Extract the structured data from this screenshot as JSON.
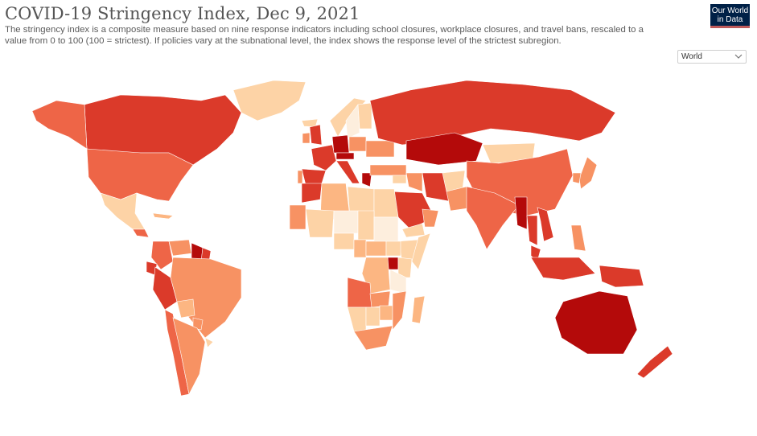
{
  "header": {
    "title": "COVID-19 Stringency Index, Dec 9, 2021",
    "subtitle": "The stringency index is a composite measure based on nine response indicators including school closures, workplace closures, and travel bans, rescaled to a value from 0 to 100 (100 = strictest). If policies vary at the subnational level, the index shows the response level of the strictest subregion."
  },
  "logo": {
    "line1": "Our World",
    "line2": "in Data"
  },
  "region_select": {
    "value": "World"
  },
  "icons": {
    "dropdown": "chevron-down-icon"
  },
  "colors": {
    "very_low": "#fdeedd",
    "low": "#fdd3a6",
    "low_mid": "#fcb682",
    "mid": "#f79263",
    "high": "#ee6547",
    "higher": "#db3a2a",
    "very_high": "#b40a0a",
    "no_data": "#e0e0e0"
  },
  "map_data": [
    {
      "name": "Canada",
      "level": "higher"
    },
    {
      "name": "Alaska (United States)",
      "level": "high"
    },
    {
      "name": "United States",
      "level": "high"
    },
    {
      "name": "Greenland",
      "level": "low"
    },
    {
      "name": "Mexico",
      "level": "low"
    },
    {
      "name": "Guatemala",
      "level": "high"
    },
    {
      "name": "Cuba",
      "level": "low_mid"
    },
    {
      "name": "Colombia",
      "level": "high"
    },
    {
      "name": "Venezuela",
      "level": "mid"
    },
    {
      "name": "Guyana",
      "level": "very_high"
    },
    {
      "name": "Suriname",
      "level": "higher"
    },
    {
      "name": "Ecuador",
      "level": "higher"
    },
    {
      "name": "Peru",
      "level": "higher"
    },
    {
      "name": "Brazil",
      "level": "mid"
    },
    {
      "name": "Bolivia",
      "level": "low_mid"
    },
    {
      "name": "Paraguay",
      "level": "mid"
    },
    {
      "name": "Chile",
      "level": "high"
    },
    {
      "name": "Argentina",
      "level": "mid"
    },
    {
      "name": "Uruguay",
      "level": "low"
    },
    {
      "name": "Iceland",
      "level": "low"
    },
    {
      "name": "Norway",
      "level": "low"
    },
    {
      "name": "Sweden",
      "level": "very_low"
    },
    {
      "name": "Finland",
      "level": "low"
    },
    {
      "name": "United Kingdom",
      "level": "higher"
    },
    {
      "name": "Ireland",
      "level": "mid"
    },
    {
      "name": "France",
      "level": "higher"
    },
    {
      "name": "Spain",
      "level": "higher"
    },
    {
      "name": "Portugal",
      "level": "mid"
    },
    {
      "name": "Germany",
      "level": "very_high"
    },
    {
      "name": "Poland",
      "level": "mid"
    },
    {
      "name": "Italy",
      "level": "higher"
    },
    {
      "name": "Austria",
      "level": "very_high"
    },
    {
      "name": "Greece",
      "level": "very_high"
    },
    {
      "name": "Ukraine",
      "level": "mid"
    },
    {
      "name": "Turkey",
      "level": "mid"
    },
    {
      "name": "Russia",
      "level": "higher"
    },
    {
      "name": "Kazakhstan",
      "level": "very_high"
    },
    {
      "name": "Mongolia",
      "level": "low"
    },
    {
      "name": "China",
      "level": "high"
    },
    {
      "name": "Japan",
      "level": "mid"
    },
    {
      "name": "South Korea",
      "level": "mid"
    },
    {
      "name": "Iran",
      "level": "higher"
    },
    {
      "name": "Iraq",
      "level": "mid"
    },
    {
      "name": "Syria",
      "level": "low"
    },
    {
      "name": "Saudi Arabia",
      "level": "higher"
    },
    {
      "name": "Yemen",
      "level": "low"
    },
    {
      "name": "Oman",
      "level": "mid"
    },
    {
      "name": "Afghanistan",
      "level": "low"
    },
    {
      "name": "Pakistan",
      "level": "mid"
    },
    {
      "name": "India",
      "level": "high"
    },
    {
      "name": "Myanmar",
      "level": "very_high"
    },
    {
      "name": "Thailand",
      "level": "higher"
    },
    {
      "name": "Vietnam",
      "level": "higher"
    },
    {
      "name": "Malaysia",
      "level": "higher"
    },
    {
      "name": "Philippines",
      "level": "mid"
    },
    {
      "name": "Indonesia",
      "level": "higher"
    },
    {
      "name": "Papua New Guinea",
      "level": "higher"
    },
    {
      "name": "Australia",
      "level": "very_high"
    },
    {
      "name": "New Zealand",
      "level": "higher"
    },
    {
      "name": "Morocco",
      "level": "higher"
    },
    {
      "name": "Algeria",
      "level": "low_mid"
    },
    {
      "name": "Libya",
      "level": "low"
    },
    {
      "name": "Egypt",
      "level": "low"
    },
    {
      "name": "Mali",
      "level": "low"
    },
    {
      "name": "Niger",
      "level": "very_low"
    },
    {
      "name": "Chad",
      "level": "low"
    },
    {
      "name": "Sudan",
      "level": "very_low"
    },
    {
      "name": "Ethiopia",
      "level": "low"
    },
    {
      "name": "Somalia",
      "level": "low"
    },
    {
      "name": "Mauritania",
      "level": "mid"
    },
    {
      "name": "Nigeria",
      "level": "low"
    },
    {
      "name": "Cameroon",
      "level": "low_mid"
    },
    {
      "name": "Central African Republic",
      "level": "low_mid"
    },
    {
      "name": "South Sudan",
      "level": "low"
    },
    {
      "name": "Uganda",
      "level": "very_high"
    },
    {
      "name": "Kenya",
      "level": "low"
    },
    {
      "name": "Tanzania",
      "level": "very_low"
    },
    {
      "name": "DR Congo",
      "level": "low_mid"
    },
    {
      "name": "Angola",
      "level": "high"
    },
    {
      "name": "Zambia",
      "level": "mid"
    },
    {
      "name": "Namibia",
      "level": "low"
    },
    {
      "name": "Botswana",
      "level": "low"
    },
    {
      "name": "Zimbabwe",
      "level": "low_mid"
    },
    {
      "name": "Mozambique",
      "level": "mid"
    },
    {
      "name": "South Africa",
      "level": "mid"
    },
    {
      "name": "Madagascar",
      "level": "low_mid"
    }
  ]
}
